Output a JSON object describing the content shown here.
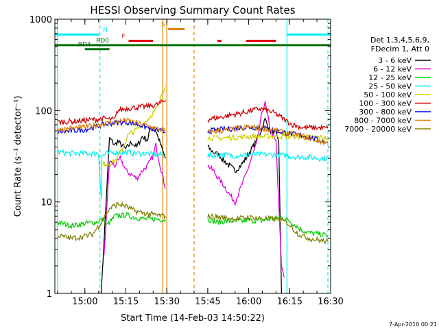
{
  "chart_data": {
    "type": "line",
    "title": "HESSI Observing Summary Count Rates",
    "xlabel": "Start Time (14-Feb-03 14:50:22)",
    "ylabel": "Count Rate (s⁻¹ detector⁻¹)",
    "y_scale": "log",
    "ylim": [
      1,
      1000
    ],
    "xlim_minutes": [
      -1,
      100
    ],
    "x_ticks": [
      {
        "min": 10,
        "label": "15:00"
      },
      {
        "min": 25,
        "label": "15:15"
      },
      {
        "min": 40,
        "label": "15:30"
      },
      {
        "min": 55,
        "label": "15:45"
      },
      {
        "min": 70,
        "label": "16:00"
      },
      {
        "min": 85,
        "label": "16:15"
      },
      {
        "min": 100,
        "label": "16:30"
      }
    ],
    "y_ticks": [
      {
        "value": 1,
        "label": "1"
      },
      {
        "value": 10,
        "label": "10"
      },
      {
        "value": 100,
        "label": "100"
      },
      {
        "value": 1000,
        "label": "1000"
      }
    ],
    "legend_title": [
      "Det 1,3,4,5,6,9,",
      "FDecim 1, Att 0"
    ],
    "legend_placement": "right",
    "footer_date": "7-Apr-2010 00:21",
    "series": [
      {
        "name": "3 - 6 keV",
        "color": "#000000",
        "segments": [
          {
            "x": [
              16,
              19,
              21,
              22,
              25,
              27,
              29,
              31,
              33,
              34,
              36,
              38,
              39.5
            ],
            "y": [
              1.0,
              50,
              42,
              46,
              38,
              45,
              40,
              52,
              48,
              65,
              60,
              40,
              30
            ]
          },
          {
            "x": [
              55,
              57,
              59,
              61,
              63,
              65,
              67,
              69,
              71,
              72,
              74,
              76,
              78,
              80,
              81,
              82
            ],
            "y": [
              40,
              35,
              33,
              28,
              25,
              22,
              25,
              30,
              38,
              42,
              55,
              80,
              60,
              55,
              45,
              1.0
            ]
          }
        ]
      },
      {
        "name": "6 - 12 keV",
        "color": "#e000e0",
        "segments": [
          {
            "x": [
              17,
              19,
              21,
              23,
              25,
              27,
              29,
              31,
              33,
              35,
              36,
              37,
              39.5
            ],
            "y": [
              2.5,
              28,
              25,
              30,
              22,
              20,
              18,
              22,
              25,
              32,
              42,
              30,
              14
            ]
          },
          {
            "x": [
              55,
              57,
              59,
              61,
              63,
              65,
              67,
              69,
              71,
              73,
              74,
              75,
              76,
              78,
              80,
              82,
              83
            ],
            "y": [
              25,
              22,
              18,
              15,
              12,
              10,
              14,
              20,
              30,
              45,
              65,
              100,
              120,
              60,
              45,
              2.0,
              1.5
            ]
          }
        ]
      },
      {
        "name": "12 - 25 keV",
        "color": "#00d000",
        "segments": [
          {
            "x": [
              0,
              5,
              10,
              14,
              17,
              18,
              21,
              25,
              28,
              32,
              36,
              39.5
            ],
            "y": [
              6,
              5.5,
              5.8,
              6,
              6.5,
              5.5,
              7,
              7.2,
              6.8,
              6.5,
              6.5,
              6.4
            ]
          },
          {
            "x": [
              55,
              58,
              62,
              66,
              70,
              74,
              78,
              82,
              85,
              89,
              92,
              95,
              99
            ],
            "y": [
              6.5,
              6,
              6.2,
              6.1,
              6.3,
              6.2,
              6.5,
              6.8,
              6.2,
              5,
              4.6,
              4.5,
              4.3
            ]
          }
        ]
      },
      {
        "name": "25 - 50 keV",
        "color": "#00f0f0",
        "segments": [
          {
            "x": [
              0,
              6,
              12,
              15,
              16,
              16.2,
              18,
              21,
              25,
              28,
              32,
              35,
              39.5
            ],
            "y": [
              35,
              34,
              34,
              34,
              11,
              32,
              34,
              35,
              35,
              34,
              34,
              33,
              33
            ]
          },
          {
            "x": [
              55,
              60,
              65,
              70,
              75,
              80,
              84,
              88,
              92,
              96,
              99
            ],
            "y": [
              32,
              33,
              32,
              33,
              33,
              33,
              32,
              31,
              31,
              30,
              30
            ]
          }
        ]
      },
      {
        "name": "50 - 100 keV",
        "color": "#d0d000",
        "segments": [
          {
            "x": [
              16,
              17,
              20,
              22,
              24,
              26,
              29,
              31,
              33,
              35,
              37,
              38,
              39.5
            ],
            "y": [
              25,
              26,
              27,
              30,
              40,
              55,
              62,
              70,
              80,
              95,
              110,
              150,
              190
            ]
          },
          {
            "x": [
              55,
              60,
              65,
              70,
              75,
              80,
              84,
              88,
              92,
              96,
              99
            ],
            "y": [
              50,
              50,
              51,
              52,
              52,
              53,
              52,
              52,
              51,
              51,
              50
            ]
          }
        ]
      },
      {
        "name": "100 - 300 keV",
        "color": "#d00000",
        "segments": [
          {
            "x": [
              0,
              5,
              10,
              14,
              17,
              19,
              21,
              22,
              25,
              28,
              31,
              34,
              37,
              39.5
            ],
            "y": [
              75,
              76,
              78,
              80,
              82,
              80,
              80,
              100,
              105,
              108,
              110,
              112,
              118,
              130
            ]
          },
          {
            "x": [
              55,
              60,
              64,
              68,
              71,
              74,
              77,
              80,
              83,
              86,
              90,
              94,
              99
            ],
            "y": [
              80,
              85,
              90,
              95,
              100,
              105,
              100,
              92,
              80,
              70,
              65,
              65,
              64
            ]
          }
        ]
      },
      {
        "name": "300 - 800 keV",
        "color": "#0000e0",
        "segments": [
          {
            "x": [
              0,
              5,
              10,
              15,
              20,
              25,
              30,
              35,
              39.5
            ],
            "y": [
              58,
              60,
              62,
              68,
              73,
              75,
              70,
              62,
              58
            ]
          },
          {
            "x": [
              55,
              60,
              65,
              70,
              75,
              80,
              85,
              90,
              95,
              99
            ],
            "y": [
              60,
              62,
              64,
              66,
              65,
              60,
              56,
              53,
              48,
              45
            ]
          }
        ]
      },
      {
        "name": "800 - 7000 keV",
        "color": "#e08000",
        "segments": [
          {
            "x": [
              0,
              5,
              10,
              15,
              20,
              25,
              30,
              35,
              39.5
            ],
            "y": [
              62,
              64,
              66,
              70,
              74,
              78,
              72,
              65,
              60
            ]
          },
          {
            "x": [
              55,
              60,
              65,
              70,
              75,
              80,
              85,
              90,
              95,
              99
            ],
            "y": [
              58,
              60,
              63,
              66,
              64,
              60,
              56,
              52,
              47,
              44
            ]
          }
        ]
      },
      {
        "name": "7000 - 20000 keV",
        "color": "#808000",
        "segments": [
          {
            "x": [
              0,
              5,
              10,
              13,
              16,
              19,
              22,
              25,
              28,
              32,
              36,
              39.5
            ],
            "y": [
              4.3,
              4.0,
              4.2,
              4.5,
              6,
              8.5,
              9.5,
              9,
              8,
              7.5,
              7.2,
              7.0
            ]
          },
          {
            "x": [
              55,
              60,
              65,
              70,
              75,
              80,
              84,
              88,
              92,
              96,
              99
            ],
            "y": [
              7,
              6.8,
              6.5,
              6.8,
              6.6,
              6.5,
              6.0,
              4.5,
              4.0,
              3.8,
              3.7
            ]
          }
        ]
      }
    ],
    "flag_bars": [
      {
        "label": "N",
        "color": "#00f0f0",
        "y": 680,
        "spans": [
          [
            -1,
            15.5
          ],
          [
            84,
            100
          ]
        ]
      },
      {
        "label": "S",
        "color": "#e08000",
        "y": 780,
        "spans": [
          [
            40.5,
            46.5
          ]
        ]
      },
      {
        "label": "F",
        "color": "#e00000",
        "y": 580,
        "spans": [
          [
            26,
            35
          ],
          [
            58.5,
            60
          ],
          [
            69,
            80
          ]
        ]
      },
      {
        "label": "RD0",
        "color": "#007000",
        "y": 520,
        "spans": [
          [
            -1,
            100
          ]
        ]
      },
      {
        "label": "RD4",
        "color": "#007000",
        "y": 470,
        "spans": [
          [
            10,
            19
          ]
        ]
      }
    ],
    "vertical_lines": [
      {
        "x": 0,
        "color": "#00f0f0",
        "dash": false
      },
      {
        "x": 15.5,
        "color": "#00f0f0",
        "dash": true
      },
      {
        "x": 84,
        "color": "#00f0f0",
        "dash": false
      },
      {
        "x": 99,
        "color": "#00f0f0",
        "dash": true
      },
      {
        "x": 38.5,
        "color": "#e08000",
        "dash": false
      },
      {
        "x": 40,
        "color": "#e08000",
        "dash": false
      },
      {
        "x": 50,
        "color": "#e08000",
        "dash": true
      }
    ]
  }
}
